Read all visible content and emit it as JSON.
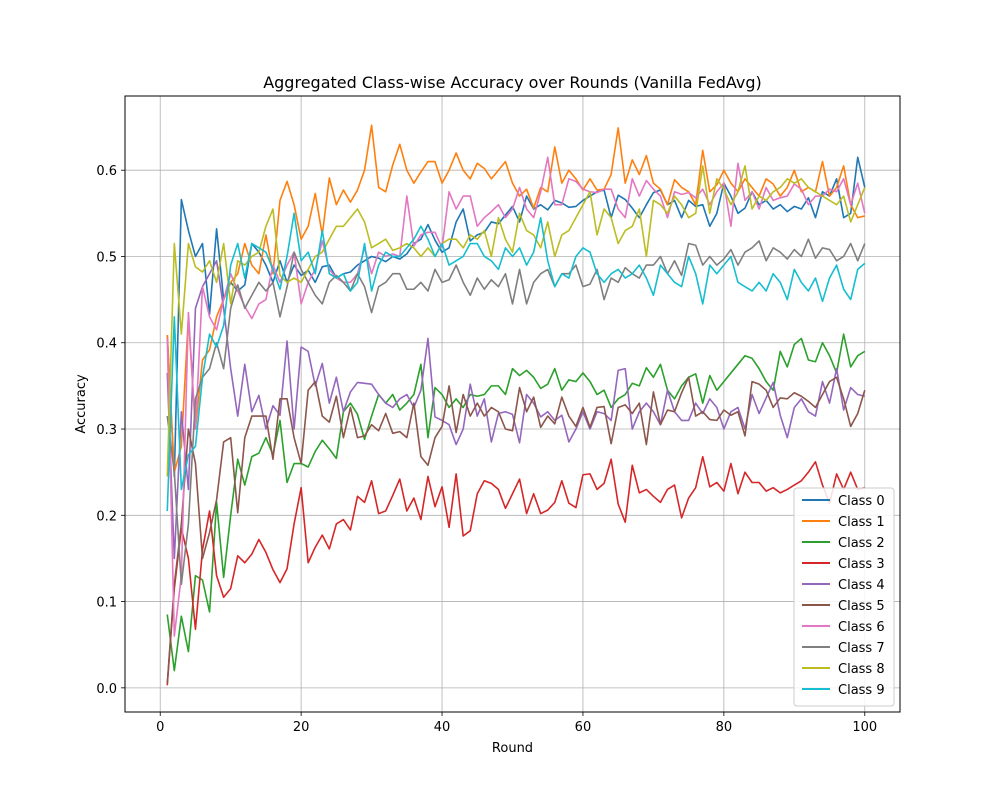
{
  "chart_data": {
    "type": "line",
    "title": "Aggregated Class-wise Accuracy over Rounds (Vanilla FedAvg)",
    "xlabel": "Round",
    "ylabel": "Accuracy",
    "xlim": [
      -5,
      105
    ],
    "ylim": [
      -0.028,
      0.686
    ],
    "xticks": [
      0,
      20,
      40,
      60,
      80,
      100
    ],
    "yticks": [
      0.0,
      0.1,
      0.2,
      0.3,
      0.4,
      0.5,
      0.6
    ],
    "xtick_labels": [
      "0",
      "20",
      "40",
      "60",
      "80",
      "100"
    ],
    "ytick_labels": [
      "0.0",
      "0.1",
      "0.2",
      "0.3",
      "0.4",
      "0.5",
      "0.6"
    ],
    "grid": true,
    "legend_position": "lower-right",
    "series": [
      {
        "name": "Class 0",
        "color": "#1f77b4",
        "values": [
          0.409,
          0.245,
          0.566,
          0.53,
          0.5,
          0.515,
          0.433,
          0.532,
          0.45,
          0.47,
          0.46,
          0.467,
          0.515,
          0.505,
          0.49,
          0.47,
          0.495,
          0.47,
          0.49,
          0.478,
          0.484,
          0.47,
          0.488,
          0.49,
          0.475,
          0.48,
          0.482,
          0.49,
          0.495,
          0.5,
          0.498,
          0.494,
          0.5,
          0.497,
          0.503,
          0.515,
          0.52,
          0.537,
          0.519,
          0.505,
          0.51,
          0.54,
          0.555,
          0.518,
          0.525,
          0.528,
          0.54,
          0.538,
          0.548,
          0.558,
          0.54,
          0.57,
          0.555,
          0.56,
          0.554,
          0.565,
          0.562,
          0.557,
          0.558,
          0.565,
          0.57,
          0.575,
          0.577,
          0.545,
          0.571,
          0.566,
          0.556,
          0.545,
          0.56,
          0.574,
          0.577,
          0.56,
          0.565,
          0.545,
          0.565,
          0.558,
          0.56,
          0.535,
          0.55,
          0.585,
          0.57,
          0.55,
          0.556,
          0.575,
          0.56,
          0.565,
          0.555,
          0.56,
          0.552,
          0.558,
          0.555,
          0.568,
          0.545,
          0.575,
          0.57,
          0.59,
          0.545,
          0.55,
          0.615,
          0.58
        ]
      },
      {
        "name": "Class 1",
        "color": "#ff7f0e",
        "values": [
          0.409,
          0.25,
          0.28,
          0.43,
          0.3,
          0.38,
          0.392,
          0.43,
          0.45,
          0.47,
          0.48,
          0.515,
          0.49,
          0.48,
          0.525,
          0.48,
          0.565,
          0.587,
          0.56,
          0.52,
          0.535,
          0.573,
          0.525,
          0.591,
          0.56,
          0.577,
          0.563,
          0.577,
          0.6,
          0.652,
          0.58,
          0.575,
          0.606,
          0.63,
          0.6,
          0.585,
          0.598,
          0.61,
          0.61,
          0.585,
          0.6,
          0.62,
          0.6,
          0.59,
          0.608,
          0.602,
          0.59,
          0.6,
          0.61,
          0.585,
          0.57,
          0.578,
          0.556,
          0.58,
          0.575,
          0.627,
          0.585,
          0.6,
          0.59,
          0.577,
          0.59,
          0.577,
          0.578,
          0.595,
          0.649,
          0.585,
          0.612,
          0.595,
          0.617,
          0.585,
          0.578,
          0.56,
          0.589,
          0.58,
          0.575,
          0.56,
          0.623,
          0.575,
          0.583,
          0.6,
          0.585,
          0.575,
          0.59,
          0.58,
          0.57,
          0.59,
          0.584,
          0.57,
          0.58,
          0.6,
          0.575,
          0.58,
          0.575,
          0.61,
          0.57,
          0.58,
          0.605,
          0.56,
          0.545,
          0.547
        ]
      },
      {
        "name": "Class 2",
        "color": "#2ca02c",
        "values": [
          0.085,
          0.02,
          0.083,
          0.042,
          0.13,
          0.125,
          0.088,
          0.215,
          0.128,
          0.2,
          0.265,
          0.235,
          0.268,
          0.272,
          0.29,
          0.27,
          0.31,
          0.238,
          0.26,
          0.26,
          0.256,
          0.274,
          0.287,
          0.277,
          0.266,
          0.32,
          0.33,
          0.317,
          0.288,
          0.315,
          0.34,
          0.33,
          0.34,
          0.322,
          0.33,
          0.34,
          0.375,
          0.29,
          0.348,
          0.34,
          0.325,
          0.335,
          0.325,
          0.34,
          0.338,
          0.34,
          0.35,
          0.35,
          0.34,
          0.37,
          0.362,
          0.368,
          0.36,
          0.347,
          0.352,
          0.37,
          0.345,
          0.357,
          0.355,
          0.365,
          0.355,
          0.34,
          0.345,
          0.325,
          0.335,
          0.34,
          0.353,
          0.35,
          0.371,
          0.36,
          0.375,
          0.345,
          0.335,
          0.35,
          0.36,
          0.364,
          0.33,
          0.362,
          0.345,
          0.355,
          0.365,
          0.375,
          0.385,
          0.382,
          0.37,
          0.355,
          0.345,
          0.39,
          0.372,
          0.398,
          0.405,
          0.38,
          0.378,
          0.4,
          0.385,
          0.365,
          0.41,
          0.372,
          0.385,
          0.39
        ]
      },
      {
        "name": "Class 3",
        "color": "#d62728",
        "values": [
          0.003,
          0.115,
          0.185,
          0.15,
          0.068,
          0.16,
          0.205,
          0.13,
          0.105,
          0.115,
          0.153,
          0.145,
          0.155,
          0.172,
          0.157,
          0.137,
          0.122,
          0.138,
          0.19,
          0.232,
          0.145,
          0.163,
          0.177,
          0.161,
          0.19,
          0.195,
          0.183,
          0.222,
          0.215,
          0.24,
          0.202,
          0.205,
          0.223,
          0.242,
          0.205,
          0.22,
          0.195,
          0.245,
          0.21,
          0.233,
          0.186,
          0.248,
          0.176,
          0.182,
          0.225,
          0.24,
          0.237,
          0.23,
          0.208,
          0.225,
          0.242,
          0.202,
          0.225,
          0.202,
          0.206,
          0.215,
          0.24,
          0.214,
          0.209,
          0.247,
          0.248,
          0.23,
          0.237,
          0.265,
          0.213,
          0.192,
          0.258,
          0.226,
          0.23,
          0.222,
          0.215,
          0.23,
          0.235,
          0.197,
          0.22,
          0.232,
          0.268,
          0.233,
          0.238,
          0.228,
          0.26,
          0.225,
          0.25,
          0.238,
          0.238,
          0.228,
          0.232,
          0.226,
          0.23,
          0.235,
          0.24,
          0.25,
          0.262,
          0.235,
          0.214,
          0.248,
          0.23,
          0.25,
          0.23,
          0.232
        ]
      },
      {
        "name": "Class 4",
        "color": "#9467bd",
        "values": [
          0.365,
          0.15,
          0.32,
          0.23,
          0.44,
          0.465,
          0.48,
          0.495,
          0.44,
          0.37,
          0.315,
          0.375,
          0.32,
          0.339,
          0.3,
          0.327,
          0.316,
          0.402,
          0.3,
          0.395,
          0.39,
          0.35,
          0.376,
          0.33,
          0.36,
          0.32,
          0.343,
          0.354,
          0.353,
          0.352,
          0.34,
          0.33,
          0.325,
          0.335,
          0.34,
          0.325,
          0.345,
          0.405,
          0.314,
          0.31,
          0.305,
          0.282,
          0.3,
          0.352,
          0.315,
          0.335,
          0.285,
          0.318,
          0.32,
          0.317,
          0.284,
          0.34,
          0.33,
          0.314,
          0.32,
          0.31,
          0.316,
          0.285,
          0.3,
          0.32,
          0.3,
          0.32,
          0.318,
          0.31,
          0.368,
          0.37,
          0.3,
          0.32,
          0.33,
          0.32,
          0.305,
          0.345,
          0.32,
          0.31,
          0.31,
          0.33,
          0.318,
          0.335,
          0.325,
          0.3,
          0.32,
          0.325,
          0.3,
          0.34,
          0.318,
          0.336,
          0.354,
          0.316,
          0.29,
          0.325,
          0.335,
          0.32,
          0.315,
          0.355,
          0.33,
          0.37,
          0.322,
          0.348,
          0.34,
          0.338
        ]
      },
      {
        "name": "Class 5",
        "color": "#8c564b",
        "values": [
          0.005,
          0.12,
          0.19,
          0.3,
          0.26,
          0.15,
          0.18,
          0.218,
          0.285,
          0.29,
          0.203,
          0.29,
          0.315,
          0.315,
          0.315,
          0.265,
          0.335,
          0.335,
          0.29,
          0.26,
          0.345,
          0.355,
          0.315,
          0.308,
          0.338,
          0.29,
          0.325,
          0.29,
          0.292,
          0.305,
          0.298,
          0.318,
          0.295,
          0.297,
          0.29,
          0.33,
          0.268,
          0.258,
          0.29,
          0.303,
          0.35,
          0.296,
          0.34,
          0.315,
          0.33,
          0.315,
          0.325,
          0.32,
          0.3,
          0.298,
          0.348,
          0.32,
          0.337,
          0.302,
          0.315,
          0.306,
          0.337,
          0.315,
          0.303,
          0.325,
          0.302,
          0.325,
          0.326,
          0.283,
          0.325,
          0.328,
          0.318,
          0.33,
          0.282,
          0.343,
          0.305,
          0.322,
          0.32,
          0.342,
          0.36,
          0.315,
          0.32,
          0.311,
          0.31,
          0.322,
          0.316,
          0.32,
          0.292,
          0.355,
          0.352,
          0.345,
          0.325,
          0.336,
          0.335,
          0.342,
          0.338,
          0.332,
          0.325,
          0.34,
          0.355,
          0.36,
          0.335,
          0.303,
          0.318,
          0.345
        ]
      },
      {
        "name": "Class 6",
        "color": "#e377c2",
        "values": [
          0.405,
          0.06,
          0.13,
          0.435,
          0.3,
          0.465,
          0.43,
          0.415,
          0.45,
          0.48,
          0.46,
          0.442,
          0.428,
          0.445,
          0.45,
          0.49,
          0.47,
          0.49,
          0.505,
          0.445,
          0.47,
          0.485,
          0.518,
          0.485,
          0.475,
          0.47,
          0.47,
          0.48,
          0.51,
          0.48,
          0.505,
          0.5,
          0.503,
          0.5,
          0.57,
          0.512,
          0.525,
          0.528,
          0.528,
          0.51,
          0.575,
          0.555,
          0.57,
          0.57,
          0.535,
          0.545,
          0.552,
          0.56,
          0.545,
          0.555,
          0.58,
          0.555,
          0.545,
          0.575,
          0.615,
          0.56,
          0.56,
          0.59,
          0.587,
          0.578,
          0.575,
          0.574,
          0.578,
          0.578,
          0.555,
          0.545,
          0.59,
          0.57,
          0.588,
          0.578,
          0.57,
          0.545,
          0.575,
          0.572,
          0.574,
          0.568,
          0.578,
          0.56,
          0.575,
          0.585,
          0.535,
          0.608,
          0.565,
          0.575,
          0.555,
          0.58,
          0.565,
          0.568,
          0.57,
          0.584,
          0.578,
          0.56,
          0.57,
          0.57,
          0.578,
          0.575,
          0.59,
          0.56,
          0.585,
          0.55
        ]
      },
      {
        "name": "Class 7",
        "color": "#7f7f7f",
        "values": [
          0.315,
          0.25,
          0.12,
          0.19,
          0.335,
          0.36,
          0.37,
          0.4,
          0.37,
          0.44,
          0.467,
          0.44,
          0.455,
          0.47,
          0.46,
          0.47,
          0.43,
          0.465,
          0.505,
          0.485,
          0.47,
          0.455,
          0.445,
          0.47,
          0.478,
          0.47,
          0.46,
          0.48,
          0.465,
          0.435,
          0.465,
          0.47,
          0.48,
          0.48,
          0.462,
          0.462,
          0.47,
          0.46,
          0.485,
          0.47,
          0.473,
          0.49,
          0.47,
          0.455,
          0.475,
          0.462,
          0.473,
          0.465,
          0.48,
          0.445,
          0.485,
          0.445,
          0.47,
          0.48,
          0.485,
          0.465,
          0.48,
          0.48,
          0.49,
          0.465,
          0.468,
          0.485,
          0.45,
          0.475,
          0.47,
          0.487,
          0.48,
          0.475,
          0.49,
          0.49,
          0.5,
          0.48,
          0.495,
          0.478,
          0.515,
          0.513,
          0.49,
          0.5,
          0.49,
          0.497,
          0.508,
          0.49,
          0.505,
          0.51,
          0.518,
          0.495,
          0.51,
          0.505,
          0.497,
          0.508,
          0.5,
          0.52,
          0.498,
          0.51,
          0.508,
          0.495,
          0.5,
          0.515,
          0.495,
          0.515
        ]
      },
      {
        "name": "Class 8",
        "color": "#bcbd22",
        "values": [
          0.245,
          0.515,
          0.41,
          0.515,
          0.488,
          0.482,
          0.495,
          0.47,
          0.515,
          0.445,
          0.495,
          0.49,
          0.5,
          0.505,
          0.535,
          0.555,
          0.478,
          0.47,
          0.475,
          0.47,
          0.485,
          0.5,
          0.505,
          0.52,
          0.535,
          0.535,
          0.545,
          0.555,
          0.54,
          0.51,
          0.515,
          0.52,
          0.507,
          0.51,
          0.515,
          0.51,
          0.5,
          0.51,
          0.5,
          0.515,
          0.52,
          0.52,
          0.51,
          0.525,
          0.52,
          0.53,
          0.5,
          0.545,
          0.52,
          0.505,
          0.55,
          0.53,
          0.525,
          0.51,
          0.54,
          0.5,
          0.525,
          0.53,
          0.545,
          0.56,
          0.575,
          0.525,
          0.555,
          0.545,
          0.515,
          0.53,
          0.535,
          0.555,
          0.5,
          0.565,
          0.56,
          0.55,
          0.57,
          0.56,
          0.545,
          0.55,
          0.605,
          0.55,
          0.59,
          0.578,
          0.56,
          0.575,
          0.605,
          0.555,
          0.57,
          0.565,
          0.575,
          0.58,
          0.59,
          0.585,
          0.59,
          0.58,
          0.575,
          0.57,
          0.565,
          0.56,
          0.57,
          0.54,
          0.56,
          0.58
        ]
      },
      {
        "name": "Class 9",
        "color": "#17becf",
        "values": [
          0.205,
          0.43,
          0.23,
          0.27,
          0.28,
          0.36,
          0.41,
          0.395,
          0.42,
          0.49,
          0.515,
          0.475,
          0.515,
          0.51,
          0.505,
          0.485,
          0.462,
          0.5,
          0.55,
          0.495,
          0.505,
          0.48,
          0.53,
          0.48,
          0.475,
          0.48,
          0.46,
          0.47,
          0.515,
          0.46,
          0.49,
          0.505,
          0.5,
          0.5,
          0.51,
          0.52,
          0.535,
          0.52,
          0.5,
          0.515,
          0.49,
          0.495,
          0.5,
          0.515,
          0.515,
          0.5,
          0.495,
          0.485,
          0.51,
          0.5,
          0.51,
          0.49,
          0.505,
          0.545,
          0.495,
          0.465,
          0.48,
          0.475,
          0.5,
          0.51,
          0.505,
          0.48,
          0.47,
          0.48,
          0.485,
          0.475,
          0.48,
          0.49,
          0.475,
          0.455,
          0.49,
          0.48,
          0.47,
          0.465,
          0.5,
          0.48,
          0.445,
          0.49,
          0.48,
          0.49,
          0.5,
          0.47,
          0.465,
          0.46,
          0.47,
          0.46,
          0.48,
          0.47,
          0.45,
          0.485,
          0.47,
          0.46,
          0.475,
          0.448,
          0.475,
          0.49,
          0.462,
          0.45,
          0.485,
          0.492
        ]
      }
    ]
  }
}
